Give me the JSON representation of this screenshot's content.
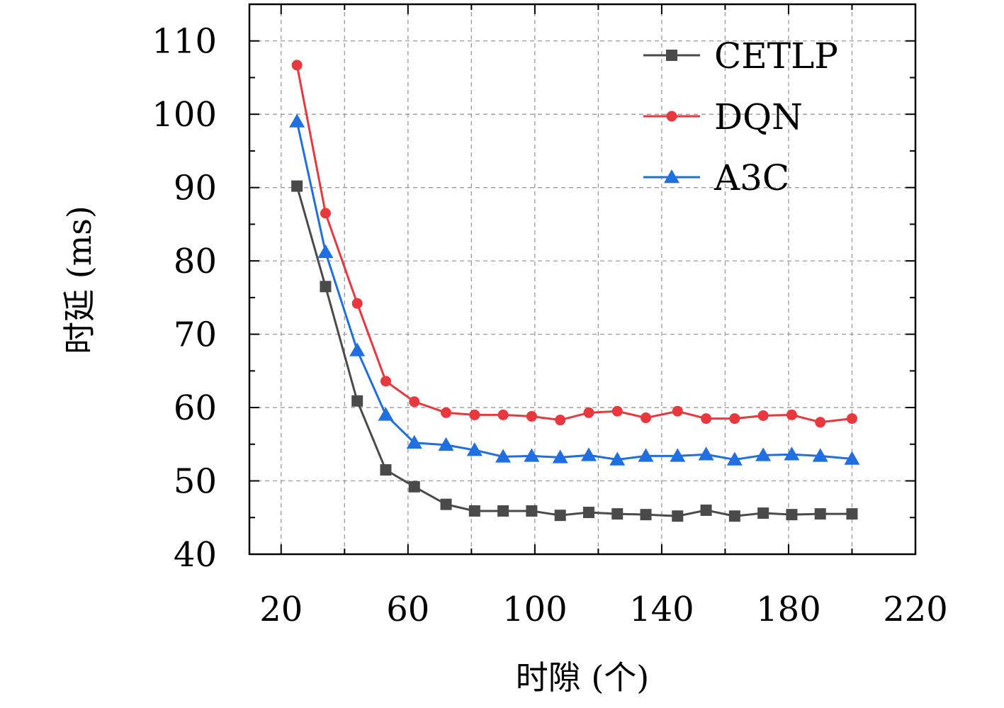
{
  "chart_data": {
    "type": "line",
    "title": "",
    "xlabel": "时隙 (个)",
    "ylabel": "时延 (ms)",
    "xlim": [
      10,
      220
    ],
    "ylim": [
      40,
      115
    ],
    "xticks": [
      20,
      60,
      100,
      140,
      180,
      220
    ],
    "yticks": [
      40,
      50,
      60,
      70,
      80,
      90,
      100,
      110
    ],
    "grid": true,
    "legend_position": "top-right",
    "x": [
      25,
      34,
      44,
      53,
      62,
      72,
      81,
      90,
      99,
      108,
      117,
      126,
      135,
      145,
      154,
      163,
      172,
      181,
      190,
      200
    ],
    "series": [
      {
        "name": "CETLP",
        "color": "#4a4a4a",
        "marker": "square",
        "values": [
          90.2,
          76.5,
          60.9,
          51.5,
          49.2,
          46.8,
          45.9,
          45.9,
          45.9,
          45.3,
          45.7,
          45.5,
          45.4,
          45.2,
          46.0,
          45.2,
          45.6,
          45.4,
          45.5,
          45.5
        ]
      },
      {
        "name": "DQN",
        "color": "#e8383d",
        "marker": "circle",
        "values": [
          106.7,
          86.5,
          74.2,
          63.6,
          60.8,
          59.3,
          59.0,
          59.0,
          58.8,
          58.3,
          59.3,
          59.5,
          58.6,
          59.5,
          58.5,
          58.5,
          58.9,
          59.0,
          58.0,
          58.5
        ]
      },
      {
        "name": "A3C",
        "color": "#1f6fe0",
        "marker": "triangle",
        "values": [
          99.0,
          81.2,
          67.8,
          59.0,
          55.2,
          54.9,
          54.2,
          53.3,
          53.4,
          53.2,
          53.5,
          52.9,
          53.4,
          53.4,
          53.6,
          52.9,
          53.5,
          53.6,
          53.4,
          53.0
        ]
      }
    ]
  }
}
